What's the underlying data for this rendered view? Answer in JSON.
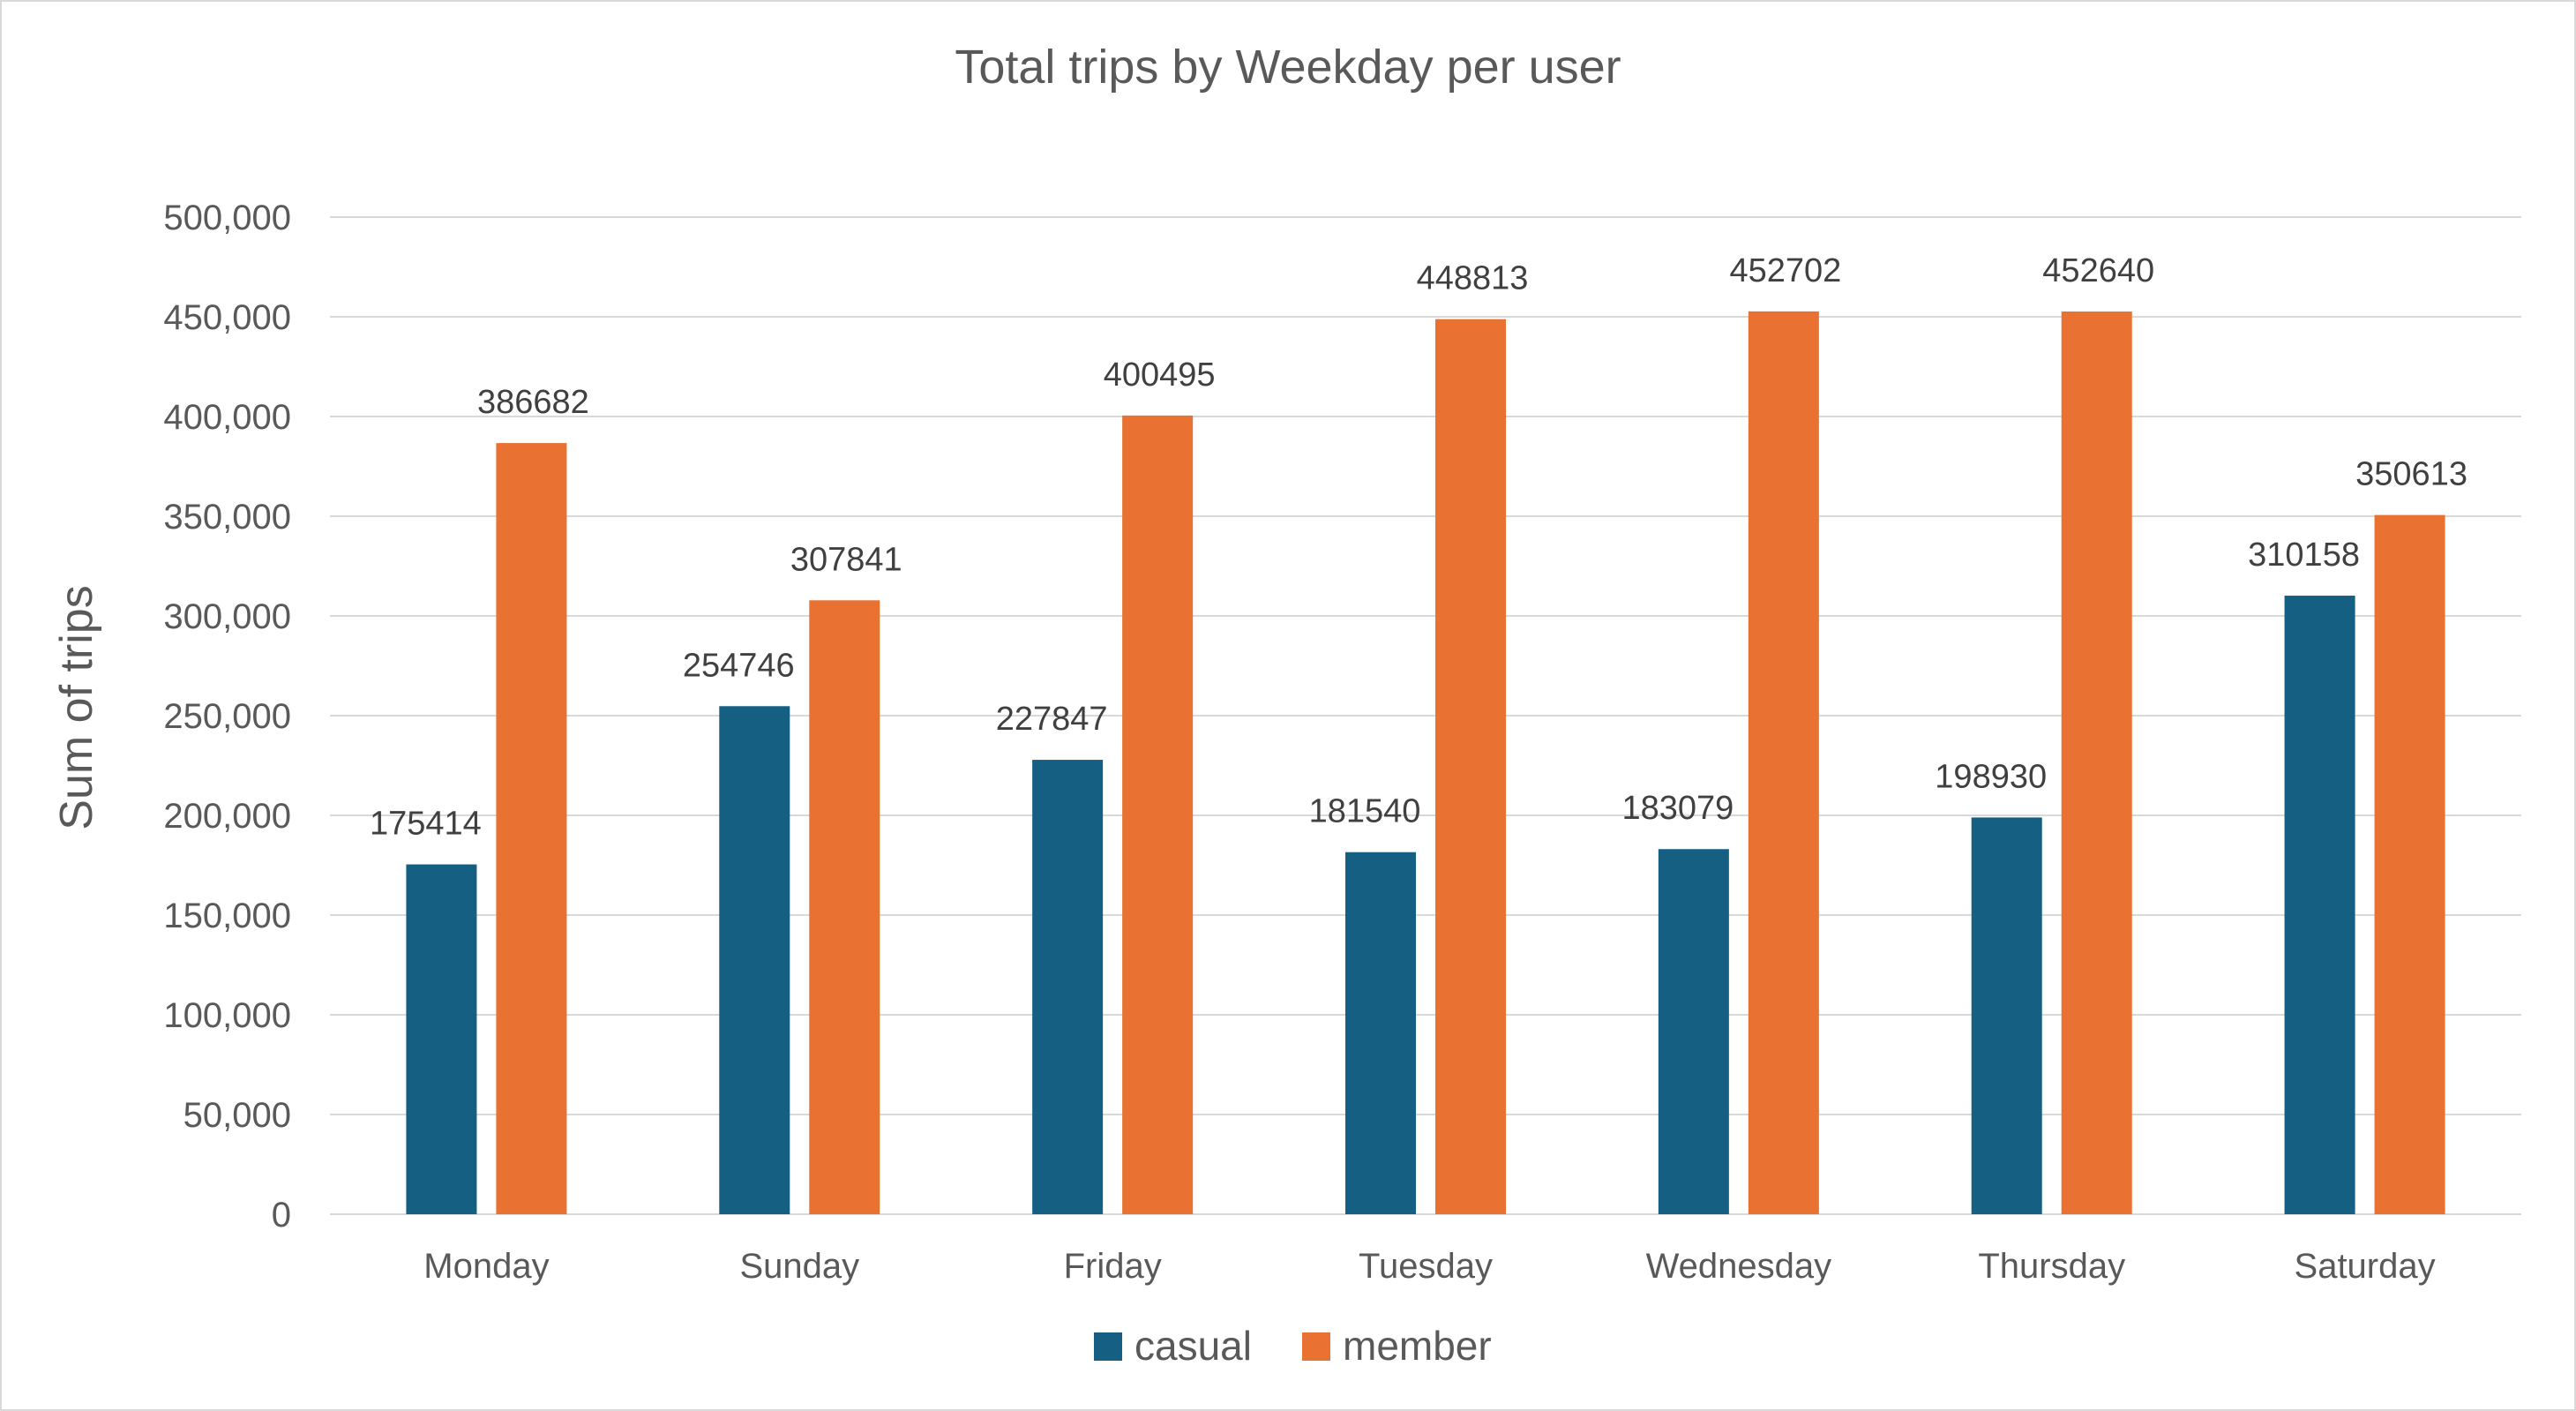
{
  "chart_data": {
    "type": "bar",
    "title": "Total trips by Weekday per user",
    "xlabel": "",
    "ylabel": "Sum of trips",
    "categories": [
      "Monday",
      "Sunday",
      "Friday",
      "Tuesday",
      "Wednesday",
      "Thursday",
      "Saturday"
    ],
    "series": [
      {
        "name": "casual",
        "color": "#156082",
        "values": [
          175414,
          254746,
          227847,
          181540,
          183079,
          198930,
          310158
        ]
      },
      {
        "name": "member",
        "color": "#E97132",
        "values": [
          386682,
          307841,
          400495,
          448813,
          452702,
          452640,
          350613
        ]
      }
    ],
    "ylim": [
      0,
      500000
    ],
    "yticks": [
      0,
      50000,
      100000,
      150000,
      200000,
      250000,
      300000,
      350000,
      400000,
      450000,
      500000
    ],
    "ytick_labels": [
      "0",
      "50,000",
      "100,000",
      "150,000",
      "200,000",
      "250,000",
      "300,000",
      "350,000",
      "400,000",
      "450,000",
      "500,000"
    ],
    "data_labels": true,
    "grid": true,
    "legend_position": "bottom"
  }
}
